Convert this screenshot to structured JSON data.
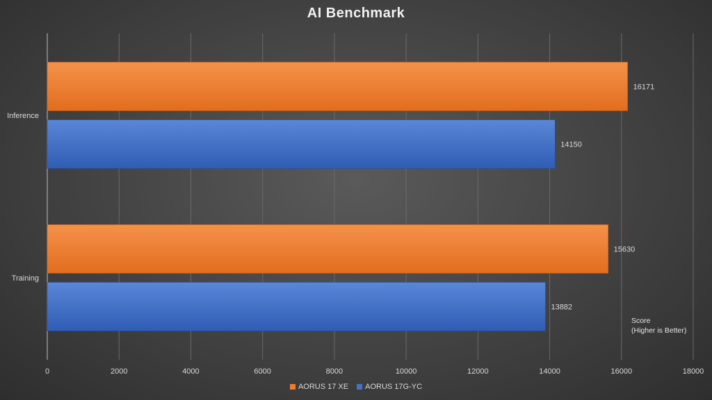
{
  "chart_data": {
    "type": "bar",
    "orientation": "horizontal",
    "title": "AI Benchmark",
    "categories": [
      "Inference",
      "Training"
    ],
    "series": [
      {
        "name": "AORUS 17 XE",
        "values": [
          16171,
          15630
        ],
        "color": "#ed7d31"
      },
      {
        "name": "AORUS 17G-YC",
        "values": [
          14150,
          13882
        ],
        "color": "#4472c4"
      }
    ],
    "xlim": [
      0,
      18000
    ],
    "x_ticks": [
      "0",
      "2000",
      "4000",
      "6000",
      "8000",
      "10000",
      "12000",
      "14000",
      "16000",
      "18000"
    ],
    "axis_note": "Score\n(Higher is Better)",
    "grid": true,
    "legend_position": "bottom"
  }
}
